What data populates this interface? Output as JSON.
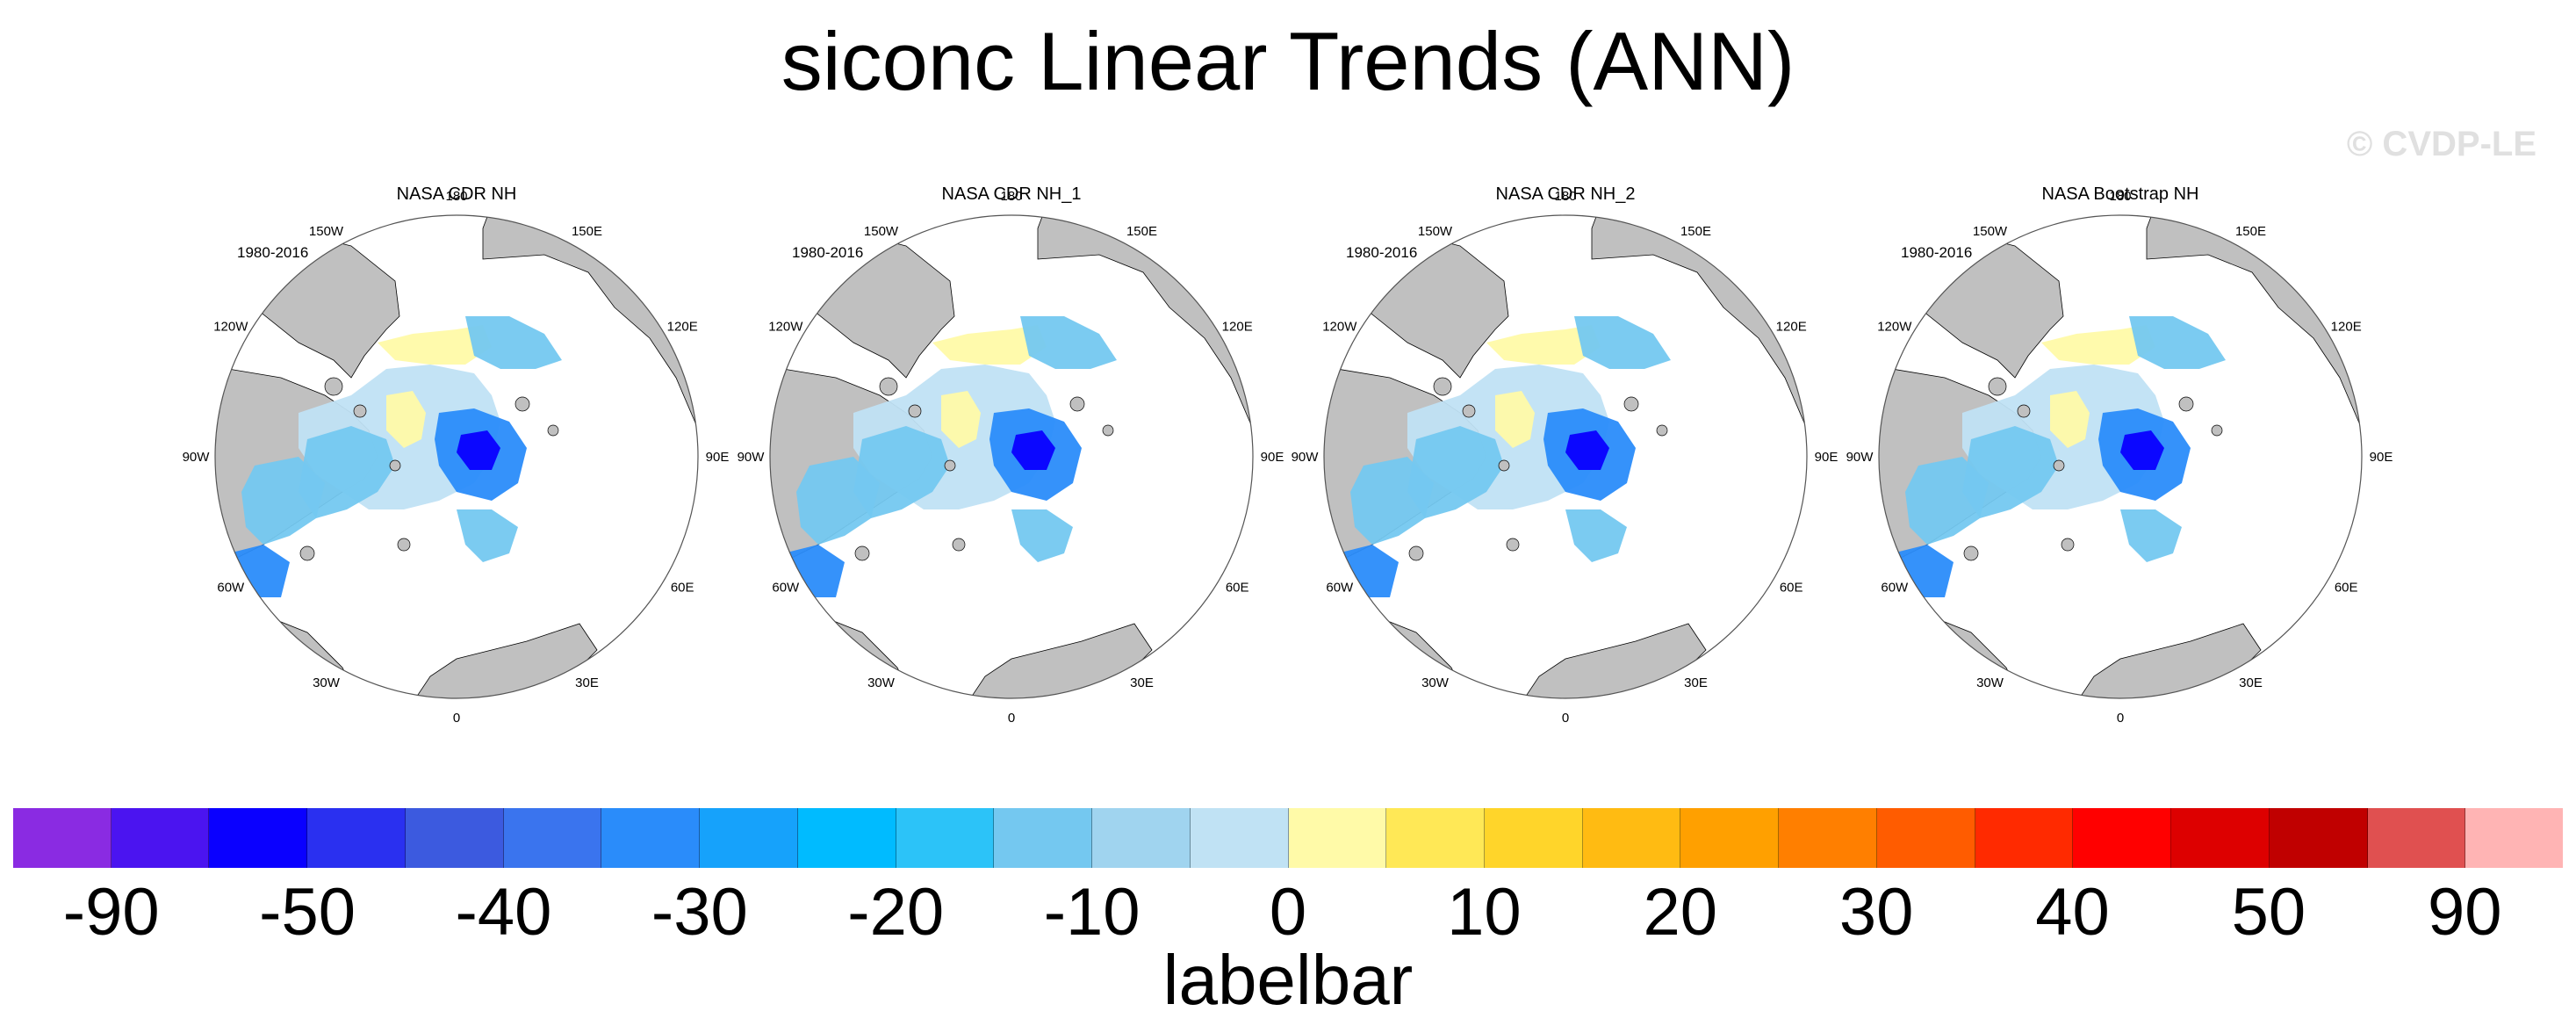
{
  "title": "siconc Linear Trends (ANN)",
  "watermark": "© CVDP-LE",
  "panels": [
    {
      "title": "NASA CDR NH",
      "period": "1980-2016"
    },
    {
      "title": "NASA CDR NH_1",
      "period": "1980-2016"
    },
    {
      "title": "NASA CDR NH_2",
      "period": "1980-2016"
    },
    {
      "title": "NASA Bootstrap NH",
      "period": "1980-2016"
    }
  ],
  "longitude_labels": [
    "180",
    "150E",
    "120E",
    "90E",
    "60E",
    "30E",
    "0",
    "30W",
    "60W",
    "90W",
    "120W",
    "150W"
  ],
  "labelbar": {
    "title": "labelbar",
    "tick_labels": [
      "-90",
      "-50",
      "-40",
      "-30",
      "-20",
      "-10",
      "0",
      "10",
      "20",
      "30",
      "40",
      "50",
      "90"
    ],
    "colors": [
      "#8a2be2",
      "#4b14f0",
      "#0a00ff",
      "#2a30f0",
      "#3c5adf",
      "#3a74ee",
      "#2a8cfa",
      "#16a2fb",
      "#00bbff",
      "#2cc3f8",
      "#74c8f0",
      "#a0d4ef",
      "#c0e2f4",
      "#fffaa8",
      "#ffe856",
      "#ffd52a",
      "#ffbb12",
      "#ffa000",
      "#ff7f00",
      "#ff5c00",
      "#ff2a00",
      "#ff0000",
      "#dd0000",
      "#c00000",
      "#e05050",
      "#ffb4b4"
    ]
  },
  "colors": {
    "land": "#c0c0c0",
    "ocean": "#ffffff",
    "ice_low": "#c0e2f4",
    "ice_mid": "#74c8f0",
    "ice_high": "#2a8cfa",
    "ice_max": "#0a00ff",
    "positive": "#fffaa8"
  }
}
